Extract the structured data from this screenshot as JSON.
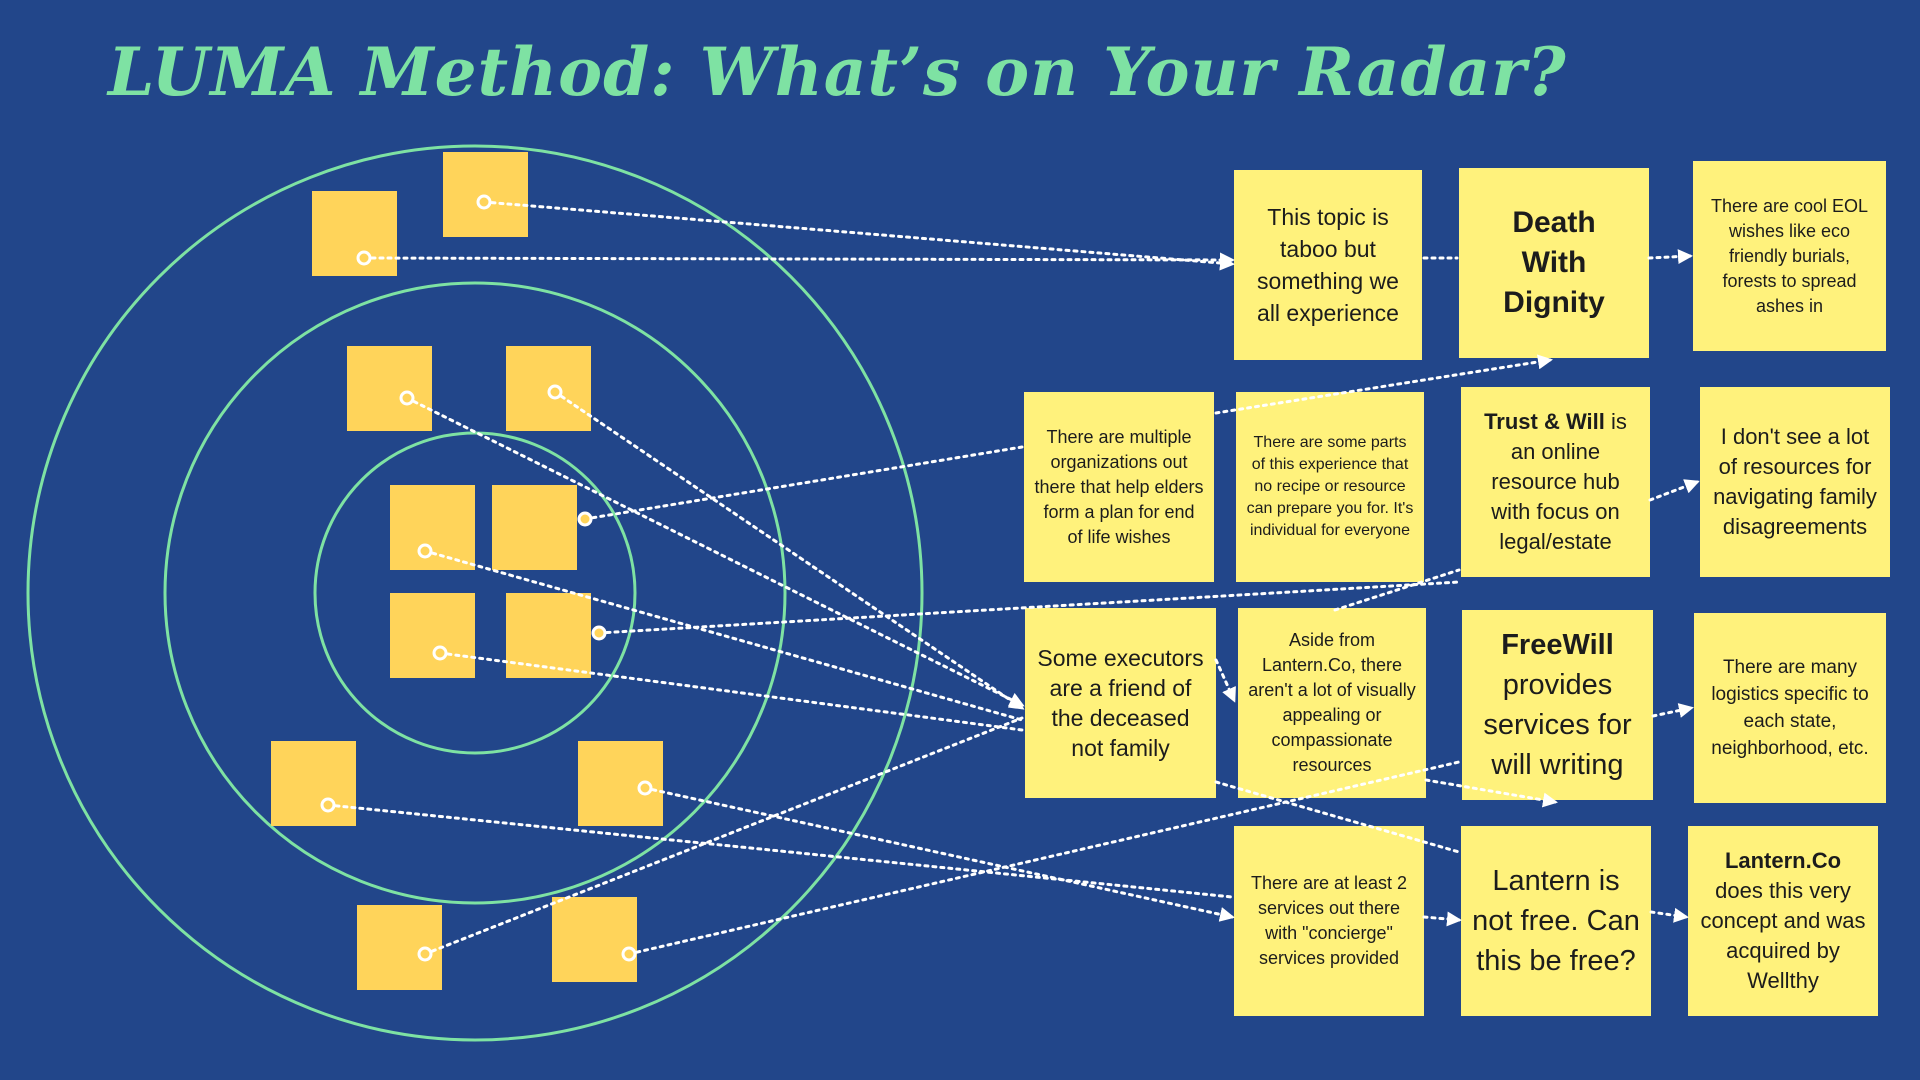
{
  "title": "LUMA Method: What’s on Your Radar?",
  "colors": {
    "background": "#22468a",
    "title": "#7ee2a3",
    "rings": "#7ee2a3",
    "mini_note": "#ffd45a",
    "note": "#fff27c",
    "connector": "#ffffff"
  },
  "notes": {
    "n1": {
      "text": "This topic is taboo but something we all experience"
    },
    "n2": {
      "text": "Death With Dignity"
    },
    "n3": {
      "text": "There are cool EOL wishes like eco friendly burials, forests to spread ashes in"
    },
    "n4": {
      "text": "There are multiple organizations out there that help elders form a plan for end of life wishes"
    },
    "n5": {
      "text": "There are some parts of this experience that no recipe or resource can prepare you for. It's individual for everyone"
    },
    "n6": {
      "bold": "Trust & Will",
      "text": "is an online resource hub with focus on legal/estate"
    },
    "n7": {
      "text": "I don't see a lot of resources for navigating family disagreements"
    },
    "n8": {
      "text": "Some executors are a friend of the deceased not family"
    },
    "n9": {
      "text": "Aside from Lantern.Co, there aren't a lot of visually appealing or compassionate resources"
    },
    "n10": {
      "bold": "FreeWill",
      "text": "provides services for will writing"
    },
    "n11": {
      "text": "There are many logistics specific to each state, neighborhood, etc."
    },
    "n12": {
      "text": "There are at least 2 services out there with \"concierge\" services provided"
    },
    "n13": {
      "text": "Lantern is not free. Can this be free?"
    },
    "n14": {
      "bold": "Lantern.Co",
      "text": "does this very concept and was acquired by Wellthy"
    }
  }
}
